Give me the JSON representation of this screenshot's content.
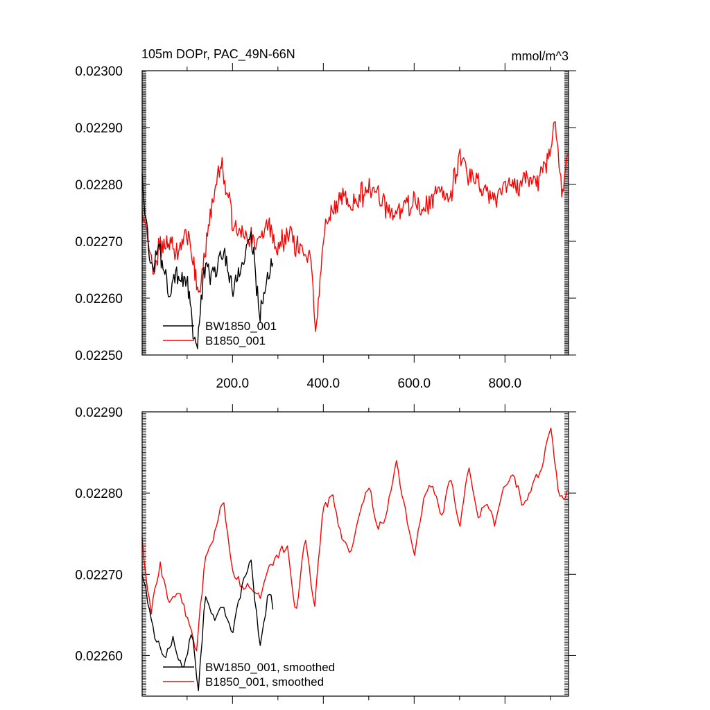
{
  "chart_data": [
    {
      "type": "line",
      "title": "105m DOPr, PAC_49N-66N",
      "units": "mmol/m^3",
      "xlim": [
        1,
        940
      ],
      "ylim": [
        0.0225,
        0.023
      ],
      "yticks": [
        "0.02250",
        "0.02260",
        "0.02270",
        "0.02280",
        "0.02290",
        "0.02300"
      ],
      "xticks": [
        "200.0",
        "400.0",
        "600.0",
        "800.0"
      ],
      "xtick_values": [
        200,
        400,
        600,
        800
      ],
      "grid": false,
      "legend_position": "bottom-left",
      "series": [
        {
          "name": "BW1850_001",
          "color": "#000000",
          "x": [
            1,
            20,
            40,
            60,
            80,
            100,
            120,
            140,
            160,
            180,
            200,
            220,
            240,
            260,
            280,
            290
          ],
          "values": [
            0.02281,
            0.02265,
            0.02268,
            0.02262,
            0.02265,
            0.02263,
            0.02251,
            0.02266,
            0.02264,
            0.02268,
            0.02262,
            0.02265,
            0.02272,
            0.02258,
            0.02265,
            0.02267
          ]
        },
        {
          "name": "B1850_001",
          "color": "#ff0000",
          "x": [
            1,
            25,
            50,
            75,
            100,
            125,
            150,
            175,
            200,
            225,
            250,
            275,
            300,
            325,
            350,
            375,
            383,
            400,
            425,
            450,
            475,
            500,
            525,
            550,
            575,
            600,
            625,
            650,
            675,
            700,
            725,
            750,
            775,
            800,
            825,
            850,
            875,
            900,
            910,
            925,
            940
          ],
          "values": [
            0.02275,
            0.02266,
            0.0227,
            0.02268,
            0.02272,
            0.0226,
            0.02274,
            0.02284,
            0.02273,
            0.02271,
            0.0227,
            0.02273,
            0.02269,
            0.02272,
            0.02268,
            0.02266,
            0.02253,
            0.02271,
            0.02276,
            0.02278,
            0.02277,
            0.0228,
            0.02277,
            0.02275,
            0.02276,
            0.02277,
            0.02276,
            0.02279,
            0.02276,
            0.02285,
            0.02281,
            0.0228,
            0.02278,
            0.0228,
            0.02279,
            0.02282,
            0.0228,
            0.02286,
            0.02292,
            0.02278,
            0.02287
          ]
        }
      ]
    },
    {
      "type": "line",
      "xlim": [
        1,
        940
      ],
      "ylim": [
        0.02255,
        0.0229
      ],
      "yticks": [
        "0.02260",
        "0.02270",
        "0.02280",
        "0.02290"
      ],
      "ytick_values": [
        0.0226,
        0.0227,
        0.0228,
        0.0229
      ],
      "xtick_values": [
        200,
        400,
        600,
        800
      ],
      "grid": false,
      "legend_position": "bottom-left",
      "series": [
        {
          "name": "BW1850_001, smoothed",
          "color": "#000000",
          "x": [
            1,
            15,
            30,
            50,
            70,
            90,
            110,
            125,
            140,
            160,
            180,
            200,
            220,
            240,
            260,
            280,
            290
          ],
          "values": [
            0.0227,
            0.02266,
            0.02262,
            0.0226,
            0.02262,
            0.02258,
            0.02263,
            0.02256,
            0.02268,
            0.02264,
            0.02266,
            0.02263,
            0.02268,
            0.02272,
            0.02261,
            0.02268,
            0.02266
          ]
        },
        {
          "name": "B1850_001, smoothed",
          "color": "#ff0000",
          "x": [
            1,
            20,
            40,
            60,
            80,
            100,
            120,
            140,
            160,
            180,
            200,
            220,
            240,
            260,
            280,
            300,
            320,
            340,
            360,
            380,
            400,
            420,
            440,
            460,
            480,
            500,
            520,
            540,
            560,
            580,
            600,
            620,
            640,
            660,
            680,
            700,
            720,
            740,
            760,
            780,
            800,
            820,
            840,
            860,
            880,
            900,
            920,
            940
          ],
          "values": [
            0.02274,
            0.02265,
            0.02271,
            0.02266,
            0.02268,
            0.02265,
            0.0226,
            0.02272,
            0.02275,
            0.02279,
            0.0227,
            0.02269,
            0.02268,
            0.02267,
            0.02271,
            0.02272,
            0.02274,
            0.02265,
            0.02275,
            0.02266,
            0.02278,
            0.0228,
            0.02275,
            0.02272,
            0.02278,
            0.02281,
            0.02275,
            0.02278,
            0.02284,
            0.02278,
            0.02272,
            0.02279,
            0.02281,
            0.02277,
            0.02282,
            0.02276,
            0.02283,
            0.02277,
            0.02279,
            0.02276,
            0.02281,
            0.02282,
            0.02278,
            0.02281,
            0.02283,
            0.02288,
            0.02279,
            0.0228
          ]
        }
      ]
    }
  ]
}
